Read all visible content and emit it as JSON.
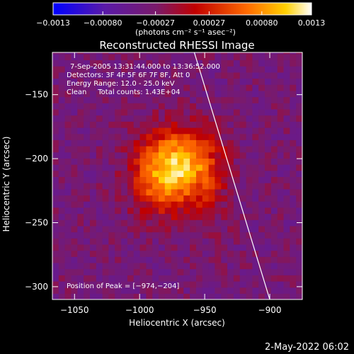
{
  "chart_data": {
    "type": "heatmap",
    "title": "Reconstructed RHESSI Image",
    "xlabel": "Heliocentric X (arcsec)",
    "ylabel": "Heliocentric Y (arcsec)",
    "xlim": [
      -1067,
      -875
    ],
    "ylim": [
      -310,
      -117
    ],
    "xticks": [
      -1050,
      -1000,
      -950,
      -900
    ],
    "xtick_labels": [
      "−1050",
      "−1000",
      "−950",
      "−900"
    ],
    "yticks": [
      -150,
      -200,
      -250,
      -300
    ],
    "ytick_labels": [
      "−150",
      "−200",
      "−250",
      "−300"
    ],
    "colorbar": {
      "range": [
        -0.0013,
        0.0013
      ],
      "ticks": [
        -0.0013,
        -0.0008,
        -0.00027,
        0.00027,
        0.0008,
        0.0013
      ],
      "tick_labels": [
        "−0.0013",
        "−0.00080",
        "−0.00027",
        "0.00027",
        "0.00080",
        "0.0013"
      ],
      "unit_label": "(photons cm⁻² s⁻¹ asec⁻²)"
    },
    "annotations": [
      "7-Sep-2005 13:31:44.000 to 13:36:52.000",
      "Detectors: 3F 4F 5F 6F 7F 8F, Att 0",
      "Energy Range: 12.0 - 25.0 keV",
      "Clean     Total counts: 1.43E+04",
      "Position of Peak = [−974,−204]"
    ],
    "peak": {
      "x": -974,
      "y": -204
    },
    "limb_line": [
      {
        "x": -958,
        "y": -117
      },
      {
        "x": -900,
        "y": -310
      }
    ],
    "sources": [
      {
        "x": -974,
        "y": -204,
        "amp": 0.0013,
        "sx": 20,
        "sy": 18
      },
      {
        "x": -985,
        "y": -228,
        "amp": 0.0006,
        "sx": 16,
        "sy": 16
      },
      {
        "x": -950,
        "y": -228,
        "amp": 0.0003,
        "sx": 12,
        "sy": 22
      }
    ],
    "grid": false,
    "colormap": "rainbow (blue → purple → red → orange → yellow → white)"
  },
  "footer": {
    "timestamp": "2-May-2022 06:02"
  },
  "colors": {
    "background": "#000000",
    "text": "#ffffff"
  }
}
